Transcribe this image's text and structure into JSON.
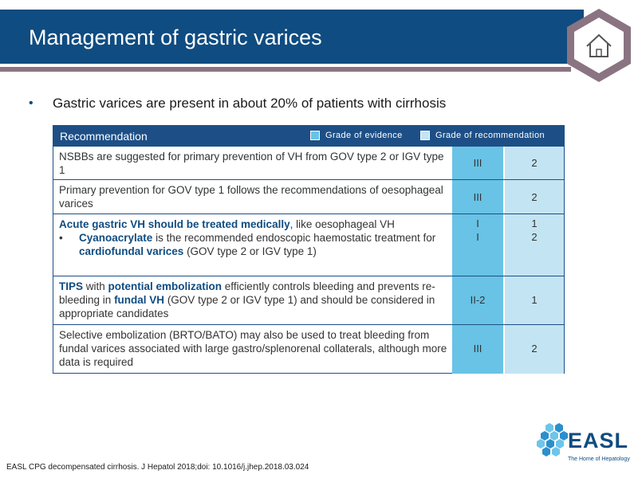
{
  "slide": {
    "title": "Management of gastric varices",
    "bullet": "Gastric varices are present in about 20% of patients with cirrhosis"
  },
  "table": {
    "header": "Recommendation",
    "legend_evidence": "Grade of evidence",
    "legend_recommendation": "Grade of recommendation",
    "rows": [
      {
        "text": "NSBBs are suggested for primary prevention of VH from GOV type 2 or IGV type 1",
        "evidence": "III",
        "recommendation": "2"
      },
      {
        "text": "Primary prevention for GOV type 1 follows the recommendations of oesophageal varices",
        "evidence": "III",
        "recommendation": "2"
      },
      {
        "lead_bold": "Acute gastric VH should be treated medically",
        "lead_rest": ", like oesophageal VH",
        "sub_bold": "Cyanoacrylate",
        "sub_mid": " is the recommended endoscopic haemostatic treatment for ",
        "sub_bold2": "cardiofundal varices",
        "sub_end": " (GOV type 2 or IGV type 1)",
        "evidence": "I",
        "evidence2": "I",
        "recommendation": "1",
        "recommendation2": "2"
      },
      {
        "bold1": "TIPS",
        "mid1": " with ",
        "bold2": "potential embolization",
        "mid2": " efficiently controls bleeding and prevents re-bleeding in ",
        "bold3": "fundal VH",
        "end": " (GOV type 2 or IGV type 1) and should be considered in appropriate candidates",
        "evidence": "II-2",
        "recommendation": "1"
      },
      {
        "text": "Selective embolization (BRTO/BATO) may also be used to treat bleeding from fundal varices associated with large gastro/splenorenal collaterals, although more data is required",
        "evidence": "III",
        "recommendation": "2"
      }
    ]
  },
  "footer": {
    "citation": "EASL CPG decompensated cirrhosis. J Hepatol 2018;doi: 10.1016/j.jhep.2018.03.024",
    "logo_text": "EASL",
    "logo_tagline": "The Home of Hepatology"
  },
  "colors": {
    "title_bar": "#0f4c81",
    "divider": "#8a7482",
    "table_header": "#1d4f86",
    "evidence_cell": "#68c3e6",
    "recommendation_cell": "#c3e4f3",
    "accent_text": "#0f4c81"
  },
  "icons": {
    "home": "home-icon",
    "logo_mark": "easl-hexagon-cluster"
  }
}
